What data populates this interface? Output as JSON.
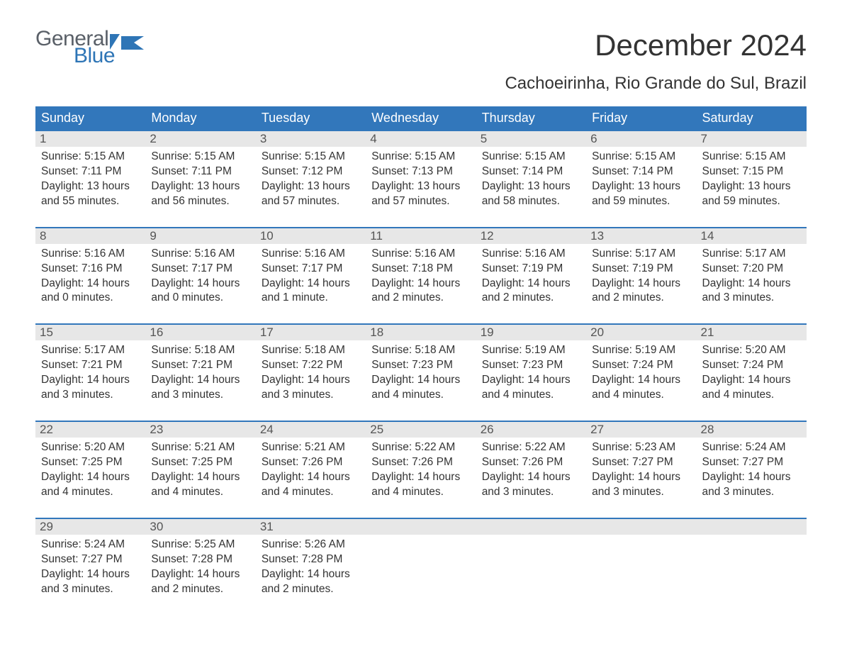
{
  "logo": {
    "text_top": "General",
    "text_bottom": "Blue",
    "color_general": "#5a6068",
    "color_blue": "#2e75b6"
  },
  "title": "December 2024",
  "subtitle": "Cachoeirinha, Rio Grande do Sul, Brazil",
  "colors": {
    "header_bg": "#3277bb",
    "header_text": "#ffffff",
    "daynum_bg": "#e7e7e7",
    "daynum_border_top": "#3277bb",
    "body_text": "#333333"
  },
  "dayHeaders": [
    "Sunday",
    "Monday",
    "Tuesday",
    "Wednesday",
    "Thursday",
    "Friday",
    "Saturday"
  ],
  "weeks": [
    [
      {
        "num": "1",
        "sunrise": "Sunrise: 5:15 AM",
        "sunset": "Sunset: 7:11 PM",
        "day1": "Daylight: 13 hours",
        "day2": "and 55 minutes."
      },
      {
        "num": "2",
        "sunrise": "Sunrise: 5:15 AM",
        "sunset": "Sunset: 7:11 PM",
        "day1": "Daylight: 13 hours",
        "day2": "and 56 minutes."
      },
      {
        "num": "3",
        "sunrise": "Sunrise: 5:15 AM",
        "sunset": "Sunset: 7:12 PM",
        "day1": "Daylight: 13 hours",
        "day2": "and 57 minutes."
      },
      {
        "num": "4",
        "sunrise": "Sunrise: 5:15 AM",
        "sunset": "Sunset: 7:13 PM",
        "day1": "Daylight: 13 hours",
        "day2": "and 57 minutes."
      },
      {
        "num": "5",
        "sunrise": "Sunrise: 5:15 AM",
        "sunset": "Sunset: 7:14 PM",
        "day1": "Daylight: 13 hours",
        "day2": "and 58 minutes."
      },
      {
        "num": "6",
        "sunrise": "Sunrise: 5:15 AM",
        "sunset": "Sunset: 7:14 PM",
        "day1": "Daylight: 13 hours",
        "day2": "and 59 minutes."
      },
      {
        "num": "7",
        "sunrise": "Sunrise: 5:15 AM",
        "sunset": "Sunset: 7:15 PM",
        "day1": "Daylight: 13 hours",
        "day2": "and 59 minutes."
      }
    ],
    [
      {
        "num": "8",
        "sunrise": "Sunrise: 5:16 AM",
        "sunset": "Sunset: 7:16 PM",
        "day1": "Daylight: 14 hours",
        "day2": "and 0 minutes."
      },
      {
        "num": "9",
        "sunrise": "Sunrise: 5:16 AM",
        "sunset": "Sunset: 7:17 PM",
        "day1": "Daylight: 14 hours",
        "day2": "and 0 minutes."
      },
      {
        "num": "10",
        "sunrise": "Sunrise: 5:16 AM",
        "sunset": "Sunset: 7:17 PM",
        "day1": "Daylight: 14 hours",
        "day2": "and 1 minute."
      },
      {
        "num": "11",
        "sunrise": "Sunrise: 5:16 AM",
        "sunset": "Sunset: 7:18 PM",
        "day1": "Daylight: 14 hours",
        "day2": "and 2 minutes."
      },
      {
        "num": "12",
        "sunrise": "Sunrise: 5:16 AM",
        "sunset": "Sunset: 7:19 PM",
        "day1": "Daylight: 14 hours",
        "day2": "and 2 minutes."
      },
      {
        "num": "13",
        "sunrise": "Sunrise: 5:17 AM",
        "sunset": "Sunset: 7:19 PM",
        "day1": "Daylight: 14 hours",
        "day2": "and 2 minutes."
      },
      {
        "num": "14",
        "sunrise": "Sunrise: 5:17 AM",
        "sunset": "Sunset: 7:20 PM",
        "day1": "Daylight: 14 hours",
        "day2": "and 3 minutes."
      }
    ],
    [
      {
        "num": "15",
        "sunrise": "Sunrise: 5:17 AM",
        "sunset": "Sunset: 7:21 PM",
        "day1": "Daylight: 14 hours",
        "day2": "and 3 minutes."
      },
      {
        "num": "16",
        "sunrise": "Sunrise: 5:18 AM",
        "sunset": "Sunset: 7:21 PM",
        "day1": "Daylight: 14 hours",
        "day2": "and 3 minutes."
      },
      {
        "num": "17",
        "sunrise": "Sunrise: 5:18 AM",
        "sunset": "Sunset: 7:22 PM",
        "day1": "Daylight: 14 hours",
        "day2": "and 3 minutes."
      },
      {
        "num": "18",
        "sunrise": "Sunrise: 5:18 AM",
        "sunset": "Sunset: 7:23 PM",
        "day1": "Daylight: 14 hours",
        "day2": "and 4 minutes."
      },
      {
        "num": "19",
        "sunrise": "Sunrise: 5:19 AM",
        "sunset": "Sunset: 7:23 PM",
        "day1": "Daylight: 14 hours",
        "day2": "and 4 minutes."
      },
      {
        "num": "20",
        "sunrise": "Sunrise: 5:19 AM",
        "sunset": "Sunset: 7:24 PM",
        "day1": "Daylight: 14 hours",
        "day2": "and 4 minutes."
      },
      {
        "num": "21",
        "sunrise": "Sunrise: 5:20 AM",
        "sunset": "Sunset: 7:24 PM",
        "day1": "Daylight: 14 hours",
        "day2": "and 4 minutes."
      }
    ],
    [
      {
        "num": "22",
        "sunrise": "Sunrise: 5:20 AM",
        "sunset": "Sunset: 7:25 PM",
        "day1": "Daylight: 14 hours",
        "day2": "and 4 minutes."
      },
      {
        "num": "23",
        "sunrise": "Sunrise: 5:21 AM",
        "sunset": "Sunset: 7:25 PM",
        "day1": "Daylight: 14 hours",
        "day2": "and 4 minutes."
      },
      {
        "num": "24",
        "sunrise": "Sunrise: 5:21 AM",
        "sunset": "Sunset: 7:26 PM",
        "day1": "Daylight: 14 hours",
        "day2": "and 4 minutes."
      },
      {
        "num": "25",
        "sunrise": "Sunrise: 5:22 AM",
        "sunset": "Sunset: 7:26 PM",
        "day1": "Daylight: 14 hours",
        "day2": "and 4 minutes."
      },
      {
        "num": "26",
        "sunrise": "Sunrise: 5:22 AM",
        "sunset": "Sunset: 7:26 PM",
        "day1": "Daylight: 14 hours",
        "day2": "and 3 minutes."
      },
      {
        "num": "27",
        "sunrise": "Sunrise: 5:23 AM",
        "sunset": "Sunset: 7:27 PM",
        "day1": "Daylight: 14 hours",
        "day2": "and 3 minutes."
      },
      {
        "num": "28",
        "sunrise": "Sunrise: 5:24 AM",
        "sunset": "Sunset: 7:27 PM",
        "day1": "Daylight: 14 hours",
        "day2": "and 3 minutes."
      }
    ],
    [
      {
        "num": "29",
        "sunrise": "Sunrise: 5:24 AM",
        "sunset": "Sunset: 7:27 PM",
        "day1": "Daylight: 14 hours",
        "day2": "and 3 minutes."
      },
      {
        "num": "30",
        "sunrise": "Sunrise: 5:25 AM",
        "sunset": "Sunset: 7:28 PM",
        "day1": "Daylight: 14 hours",
        "day2": "and 2 minutes."
      },
      {
        "num": "31",
        "sunrise": "Sunrise: 5:26 AM",
        "sunset": "Sunset: 7:28 PM",
        "day1": "Daylight: 14 hours",
        "day2": "and 2 minutes."
      },
      null,
      null,
      null,
      null
    ]
  ]
}
